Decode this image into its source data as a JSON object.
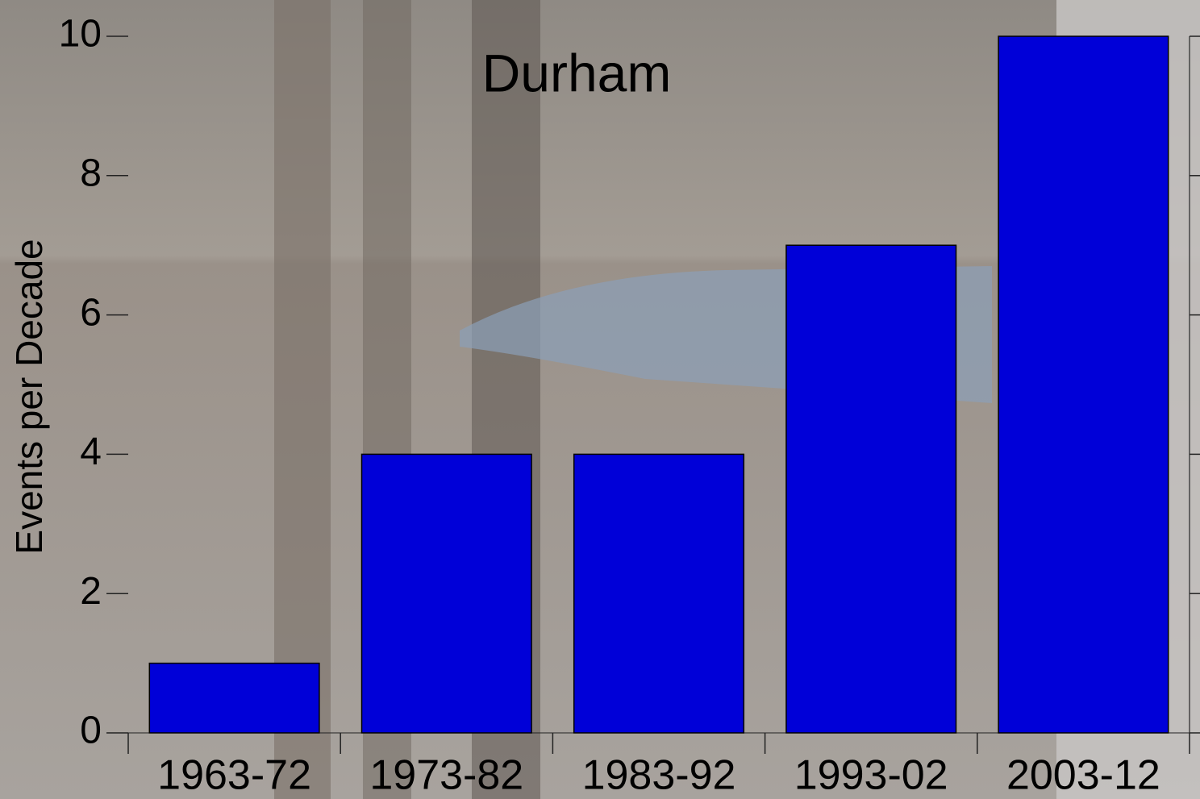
{
  "chart_data": {
    "type": "bar",
    "title": "Durham",
    "y_label": "Events per Decade",
    "categories": [
      "1963-72",
      "1973-82",
      "1983-92",
      "1993-02",
      "2003-12"
    ],
    "values": [
      1,
      4,
      4,
      7,
      10
    ],
    "color": "#0000d8",
    "ylim": [
      0,
      10
    ],
    "yticks": [
      0,
      2,
      4,
      6,
      8,
      10
    ]
  }
}
